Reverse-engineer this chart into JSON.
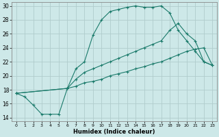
{
  "xlabel": "Humidex (Indice chaleur)",
  "bg_color": "#cde8e8",
  "grid_color": "#b0cccc",
  "line_color": "#1a7a6a",
  "xlim": [
    -0.5,
    23.5
  ],
  "ylim": [
    13.5,
    30.5
  ],
  "xticks": [
    0,
    1,
    2,
    3,
    4,
    5,
    6,
    7,
    8,
    9,
    10,
    11,
    12,
    13,
    14,
    15,
    16,
    17,
    18,
    19,
    20,
    21,
    22,
    23
  ],
  "yticks": [
    14,
    16,
    18,
    20,
    22,
    24,
    26,
    28,
    30
  ],
  "line1_x": [
    0,
    1,
    2,
    3,
    4,
    5,
    6,
    7,
    8,
    9,
    10,
    11,
    12,
    13,
    14,
    15,
    16,
    17,
    18,
    19,
    20,
    21,
    22,
    23
  ],
  "line1_y": [
    17.5,
    17.0,
    15.8,
    14.5,
    14.5,
    14.5,
    18.2,
    21.0,
    22.0,
    25.8,
    28.0,
    29.2,
    29.5,
    29.8,
    30.0,
    29.8,
    29.8,
    30.0,
    29.0,
    26.5,
    25.0,
    23.5,
    22.0,
    21.5
  ],
  "line2_x": [
    0,
    6,
    7,
    8,
    9,
    10,
    11,
    12,
    13,
    14,
    15,
    16,
    17,
    18,
    19,
    20,
    21,
    22,
    23
  ],
  "line2_y": [
    17.5,
    18.2,
    19.5,
    20.5,
    21.0,
    21.5,
    22.0,
    22.5,
    23.0,
    23.5,
    24.0,
    24.5,
    25.0,
    26.5,
    27.5,
    26.0,
    25.0,
    22.0,
    21.5
  ],
  "line3_x": [
    0,
    6,
    7,
    8,
    9,
    10,
    11,
    12,
    13,
    14,
    15,
    16,
    17,
    18,
    19,
    20,
    21,
    22,
    23
  ],
  "line3_y": [
    17.5,
    18.2,
    18.5,
    19.0,
    19.2,
    19.5,
    20.0,
    20.3,
    20.6,
    21.0,
    21.3,
    21.7,
    22.0,
    22.5,
    23.0,
    23.5,
    23.8,
    24.0,
    21.5
  ]
}
